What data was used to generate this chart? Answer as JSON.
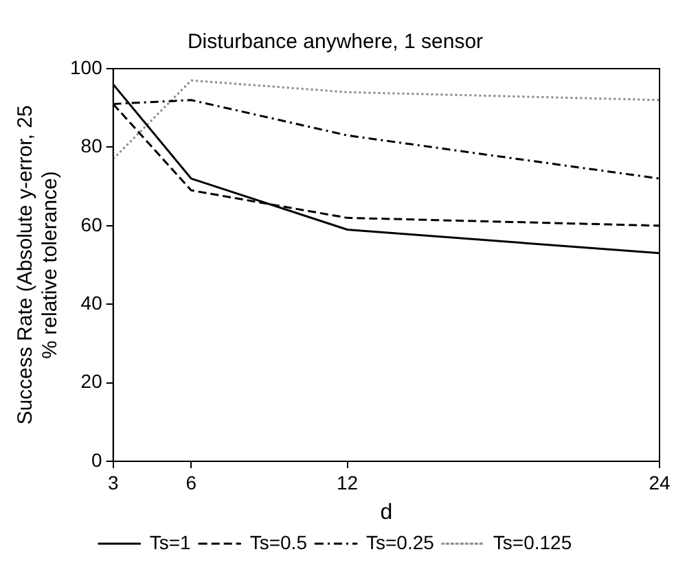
{
  "chart_data": {
    "type": "line",
    "title": "Disturbance anywhere, 1 sensor",
    "xlabel": "d",
    "ylabel": "Success Rate (Absolute y-error, 25 % relative tolerance)",
    "x": [
      3,
      6,
      12,
      24
    ],
    "series": [
      {
        "name": "Ts=1",
        "color": "#000000",
        "line_style": "solid",
        "values": [
          96,
          72,
          59,
          53
        ]
      },
      {
        "name": "Ts=0.5",
        "color": "#000000",
        "line_style": "dashed",
        "values": [
          91,
          69,
          62,
          60
        ]
      },
      {
        "name": "Ts=0.25",
        "color": "#000000",
        "line_style": "dashdot",
        "values": [
          91,
          92,
          83,
          72
        ]
      },
      {
        "name": "Ts=0.125",
        "color": "#888888",
        "line_style": "dotted",
        "values": [
          77,
          97,
          94,
          92
        ]
      }
    ],
    "xlim": [
      3,
      24
    ],
    "xticks": [
      3,
      6,
      12,
      24
    ],
    "ylim": [
      0,
      100
    ],
    "yticks": [
      0,
      20,
      40,
      60,
      80,
      100
    ],
    "grid": false,
    "legend": "bottom",
    "marker": "none"
  }
}
